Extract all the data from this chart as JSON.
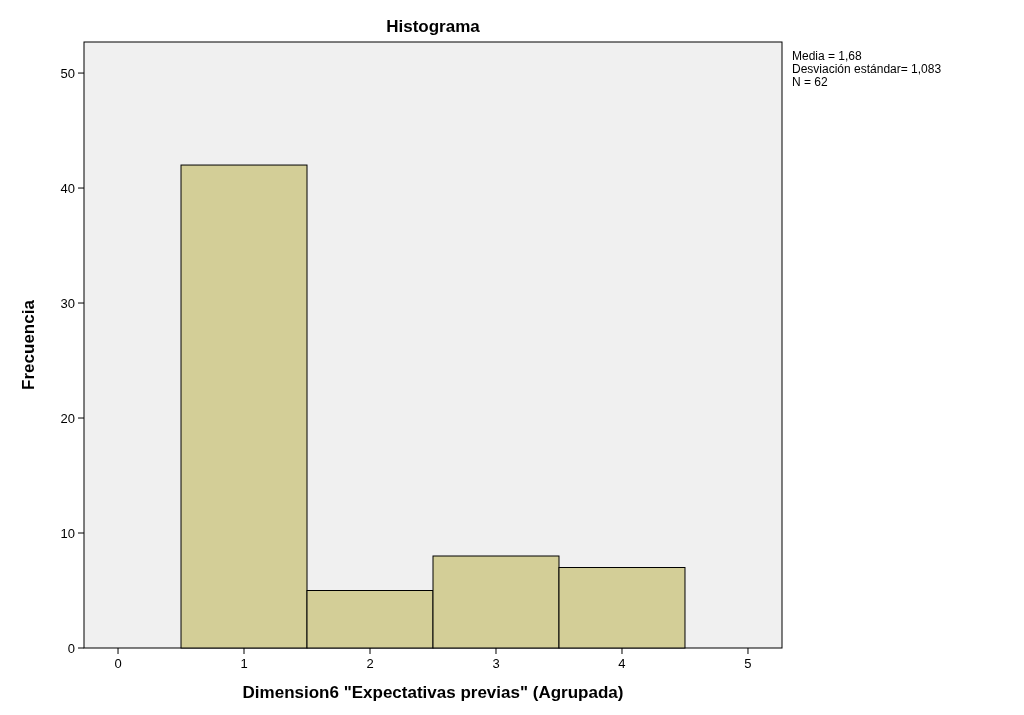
{
  "chart_data": {
    "type": "histogram",
    "title": "Histograma",
    "xlabel": "Dimension6 \"Expectativas previas\" (Agrupada)",
    "ylabel": "Frecuencia",
    "bins": [
      0.5,
      1.5,
      2.5,
      3.5,
      4.5
    ],
    "values": [
      42,
      5,
      8,
      7
    ],
    "color": "#d3ce97",
    "xlim": [
      -0.27,
      5.27
    ],
    "xticks": [
      0,
      1,
      2,
      3,
      4,
      5
    ],
    "ylim": [
      0,
      52.7
    ],
    "yticks": [
      0,
      10,
      20,
      30,
      40,
      50
    ],
    "grid": false,
    "annotations": [
      "Media = 1,68",
      "Desviación estándar= 1,083",
      "N = 62"
    ]
  }
}
